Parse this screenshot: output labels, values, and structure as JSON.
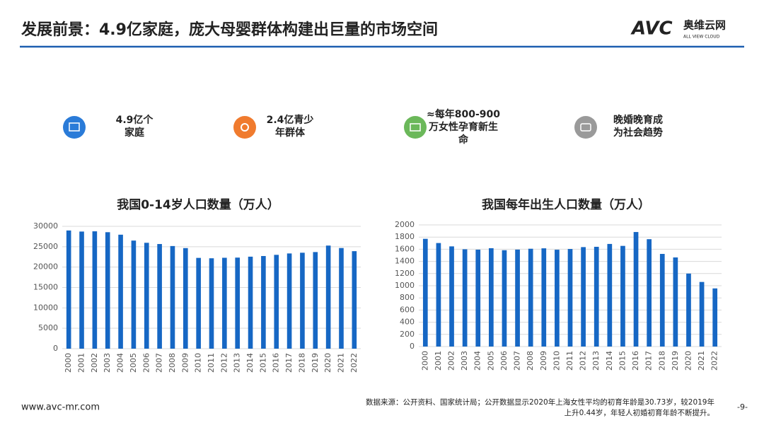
{
  "header": {
    "title": "发展前景：4.9亿家庭，庞大母婴群体构建出巨量的市场空间"
  },
  "logo": {
    "mark": "AVC",
    "name": "奥维云网",
    "tagline": "ALL VIEW CLOUD"
  },
  "highlights": [
    {
      "lines": [
        "4.9亿个",
        "家庭"
      ]
    },
    {
      "lines": [
        "2.4亿青少",
        "年群体"
      ]
    },
    {
      "lines": [
        "≈每年800-900",
        "万女性孕育新生",
        "命"
      ]
    },
    {
      "lines": [
        "晚婚晚育成",
        "为社会趋势"
      ]
    }
  ],
  "chart_data": [
    {
      "type": "bar",
      "title": "我国0-14岁人口数量（万人）",
      "categories": [
        "2000",
        "2001",
        "2002",
        "2003",
        "2004",
        "2005",
        "2006",
        "2007",
        "2008",
        "2009",
        "2010",
        "2011",
        "2012",
        "2013",
        "2014",
        "2015",
        "2016",
        "2017",
        "2018",
        "2019",
        "2020",
        "2021",
        "2022"
      ],
      "values": [
        28979,
        28716,
        28774,
        28559,
        27947,
        26504,
        25961,
        25660,
        25166,
        24659,
        22259,
        22164,
        22287,
        22329,
        22558,
        22715,
        23008,
        23348,
        23523,
        23689,
        25277,
        24678,
        23908
      ],
      "color": "#1667c4",
      "ylim": [
        0,
        30000
      ],
      "yticks": [
        0,
        5000,
        10000,
        15000,
        20000,
        25000,
        30000
      ],
      "grid": true
    },
    {
      "type": "bar",
      "title": "我国每年出生人口数量（万人）",
      "categories": [
        "2000",
        "2001",
        "2002",
        "2003",
        "2004",
        "2005",
        "2006",
        "2007",
        "2008",
        "2009",
        "2010",
        "2011",
        "2012",
        "2013",
        "2014",
        "2015",
        "2016",
        "2017",
        "2018",
        "2019",
        "2020",
        "2021",
        "2022"
      ],
      "values": [
        1771,
        1702,
        1647,
        1599,
        1593,
        1617,
        1584,
        1594,
        1608,
        1615,
        1592,
        1604,
        1635,
        1640,
        1687,
        1655,
        1883,
        1765,
        1523,
        1465,
        1200,
        1062,
        956
      ],
      "color": "#1667c4",
      "ylim": [
        0,
        2000
      ],
      "yticks": [
        0,
        200,
        400,
        600,
        800,
        1000,
        1200,
        1400,
        1600,
        1800,
        2000
      ],
      "grid": true
    }
  ],
  "footer": {
    "source": [
      "数据来源：公开资料、国家统计局；公开数据显示2020年上海女性平均的初育年龄是30.73岁，较2019年",
      "上升0.44岁，年轻人初婚初育年龄不断提升。"
    ],
    "page": "-9-",
    "website": "www.avc-mr.com"
  }
}
